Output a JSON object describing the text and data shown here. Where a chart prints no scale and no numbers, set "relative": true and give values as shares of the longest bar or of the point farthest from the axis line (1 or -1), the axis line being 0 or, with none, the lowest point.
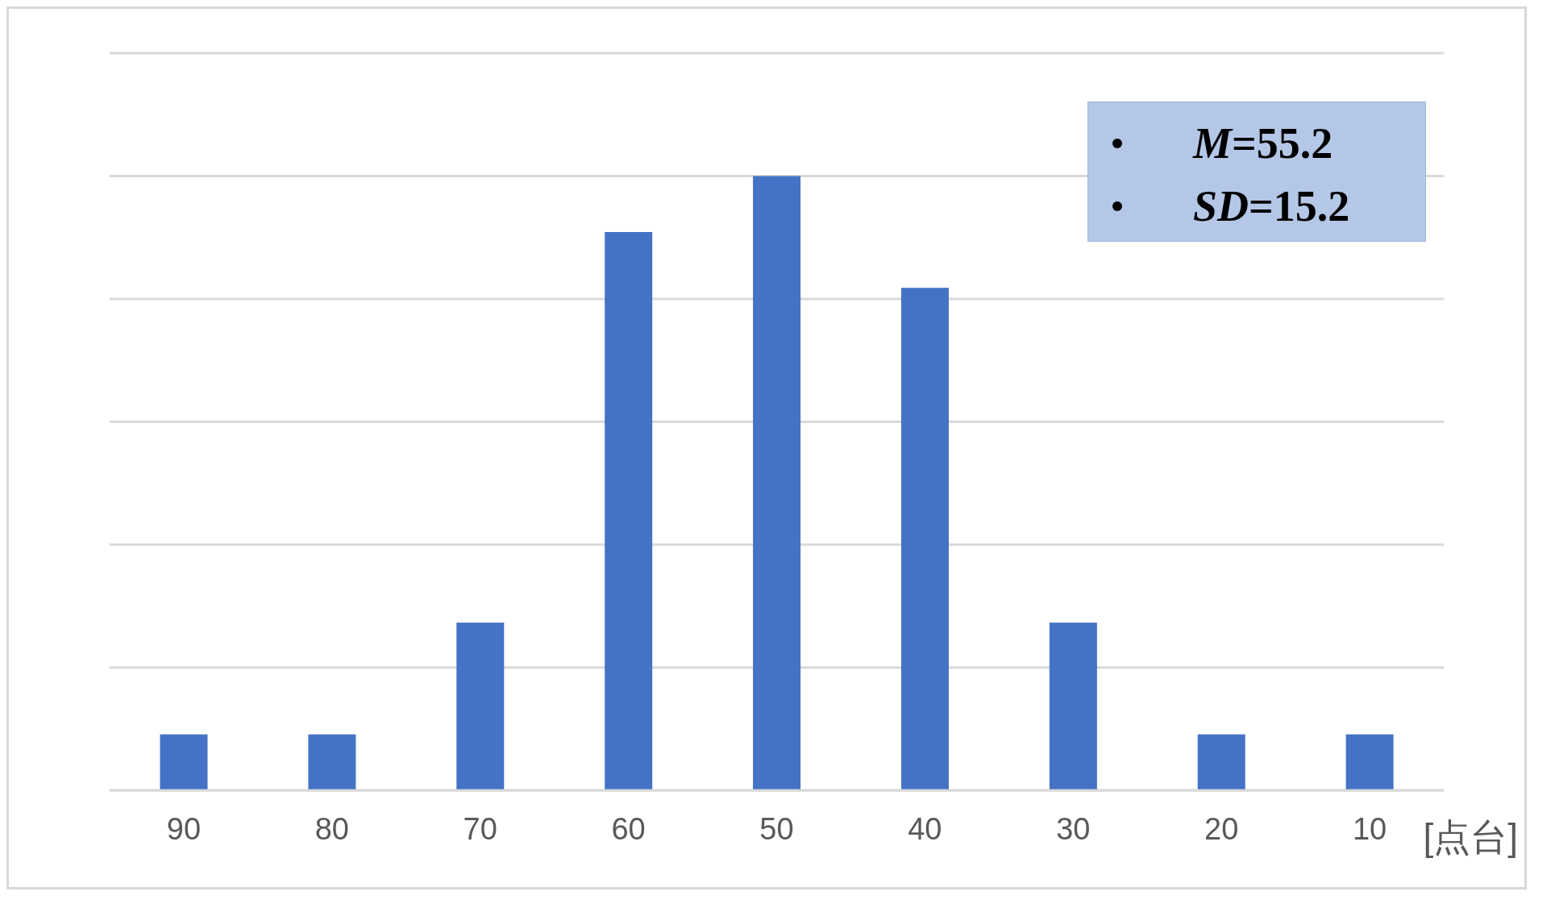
{
  "chart_data": {
    "type": "bar",
    "categories": [
      "90",
      "80",
      "70",
      "60",
      "50",
      "40",
      "30",
      "20",
      "10"
    ],
    "values": [
      0.091,
      0.091,
      0.273,
      0.909,
      1,
      0.818,
      0.273,
      0.091,
      0.091
    ],
    "color": "#4472c4",
    "relative": true,
    "grid": "y",
    "xlabel": "[点台]",
    "annotations": [
      "M=55.2",
      "SD=15.2"
    ]
  }
}
